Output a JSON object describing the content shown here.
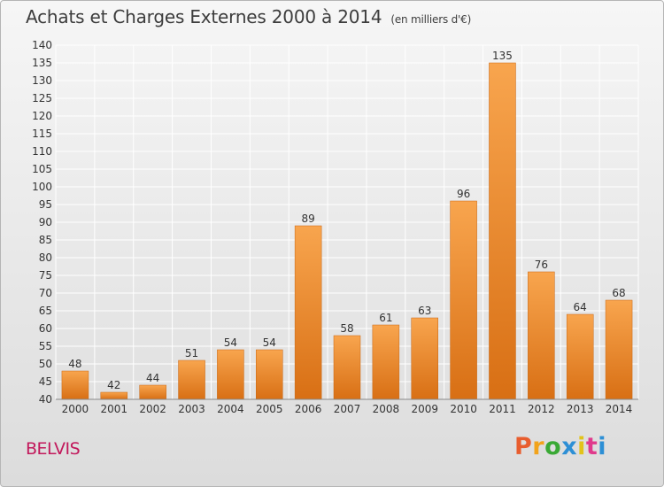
{
  "header": {
    "title": "Achats et Charges Externes 2000 à 2014",
    "subtitle": "(en milliers d'€)"
  },
  "footer": {
    "location": "BELVIS",
    "logo_text": "Proxiti",
    "logo_colors": [
      "#e85d2e",
      "#f2a31b",
      "#3aa935",
      "#2d8fd5",
      "#e2c31a",
      "#e03a8c",
      "#2d8fd5"
    ]
  },
  "colors": {
    "bar_top": "#f8a54e",
    "bar_bottom": "#d86f14",
    "bar_edge": "#c86510",
    "grid": "#ffffff"
  },
  "chart_data": {
    "type": "bar",
    "title": "Achats et Charges Externes 2000 à 2014",
    "subtitle": "(en milliers d'€)",
    "categories": [
      "2000",
      "2001",
      "2002",
      "2003",
      "2004",
      "2005",
      "2006",
      "2007",
      "2008",
      "2009",
      "2010",
      "2011",
      "2012",
      "2013",
      "2014"
    ],
    "values": [
      48,
      42,
      44,
      51,
      54,
      54,
      89,
      58,
      61,
      63,
      96,
      135,
      76,
      64,
      68
    ],
    "ylim": [
      40,
      140
    ],
    "yticks": [
      40,
      45,
      50,
      55,
      60,
      65,
      70,
      75,
      80,
      85,
      90,
      95,
      100,
      105,
      110,
      115,
      120,
      125,
      130,
      135,
      140
    ],
    "xlabel": "",
    "ylabel": "",
    "grid": true,
    "legend": "none"
  }
}
